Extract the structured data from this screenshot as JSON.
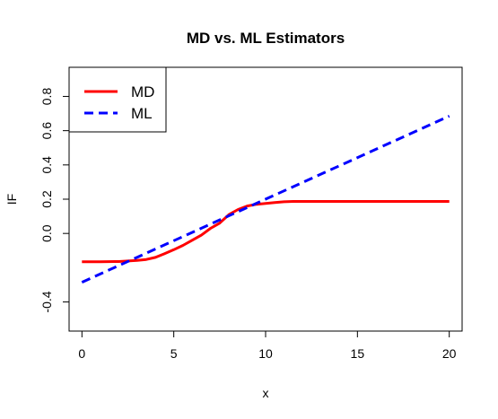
{
  "chart_data": {
    "type": "line",
    "title": "MD vs. ML Estimators",
    "xlabel": "x",
    "ylabel": "IF",
    "xlim": [
      -0.7,
      20.7
    ],
    "ylim": [
      -0.57,
      0.97
    ],
    "x_ticks": [
      "0",
      "5",
      "10",
      "15",
      "20"
    ],
    "y_ticks": [
      "-0.4",
      "0.0",
      "0.2",
      "0.4",
      "0.6",
      "0.8"
    ],
    "legend_position": "top-left",
    "series": [
      {
        "name": "MD",
        "color": "#ff0000",
        "style": "solid",
        "x": [
          0,
          1,
          2,
          3,
          3.5,
          4,
          4.5,
          5,
          5.5,
          6,
          6.5,
          7,
          7.5,
          8,
          8.5,
          9,
          9.5,
          10,
          10.5,
          11,
          11.5,
          12,
          14,
          16,
          18,
          20
        ],
        "y": [
          -0.165,
          -0.165,
          -0.164,
          -0.158,
          -0.152,
          -0.14,
          -0.118,
          -0.095,
          -0.07,
          -0.04,
          -0.01,
          0.03,
          0.06,
          0.11,
          0.14,
          0.16,
          0.17,
          0.175,
          0.18,
          0.185,
          0.187,
          0.187,
          0.187,
          0.187,
          0.187,
          0.187
        ]
      },
      {
        "name": "ML",
        "color": "#0000ff",
        "style": "dashed",
        "x": [
          0,
          20
        ],
        "y": [
          -0.285,
          0.685
        ]
      }
    ]
  }
}
